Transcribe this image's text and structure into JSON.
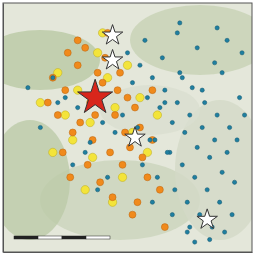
{
  "chart_data": {
    "type": "scatter",
    "xlim": [
      0,
      100
    ],
    "ylim": [
      0,
      100
    ],
    "xticks": [],
    "yticks": [],
    "tick_labels": false,
    "grid": false,
    "series": [
      {
        "color": "#f3e43a",
        "marker": "circle",
        "x": [
          15,
          22,
          30,
          38,
          45,
          52,
          58,
          35,
          28,
          42,
          48,
          33,
          25,
          55,
          40,
          20,
          50,
          36,
          44,
          62
        ],
        "values": [
          60,
          72,
          65,
          80,
          58,
          48,
          40,
          52,
          45,
          70,
          30,
          25,
          55,
          62,
          88,
          40,
          75,
          38,
          20,
          55
        ]
      },
      {
        "color": "#f08a1c",
        "marker": "circle",
        "x": [
          20,
          25,
          30,
          35,
          40,
          45,
          50,
          55,
          60,
          22,
          28,
          33,
          38,
          43,
          48,
          53,
          58,
          63,
          18,
          24,
          31,
          36,
          41,
          46,
          51,
          56,
          27,
          34,
          39,
          44,
          49,
          54,
          30,
          42,
          47,
          52,
          37,
          26,
          60,
          65
        ],
        "values": [
          70,
          65,
          75,
          60,
          68,
          55,
          62,
          50,
          45,
          55,
          48,
          82,
          72,
          40,
          35,
          58,
          30,
          25,
          60,
          40,
          52,
          45,
          78,
          65,
          42,
          38,
          30,
          35,
          28,
          22,
          48,
          20,
          85,
          88,
          72,
          15,
          55,
          80,
          65,
          10
        ]
      },
      {
        "color": "#1f7fa0",
        "marker": "circle",
        "x": [
          50,
          55,
          60,
          65,
          70,
          75,
          80,
          85,
          90,
          52,
          58,
          63,
          68,
          73,
          78,
          83,
          88,
          93,
          48,
          54,
          61,
          67,
          72,
          77,
          82,
          87,
          92,
          56,
          62,
          69,
          74,
          79,
          84,
          89,
          57,
          64,
          71,
          76,
          81,
          86,
          91,
          59,
          66,
          70,
          78,
          85,
          60,
          68,
          75,
          83,
          65,
          72,
          80,
          88,
          95,
          45,
          40,
          35,
          30,
          25,
          20,
          15,
          10,
          42,
          38,
          33,
          28,
          22,
          96,
          97,
          94,
          90,
          86,
          71,
          74,
          77
        ],
        "values": [
          80,
          75,
          70,
          65,
          60,
          55,
          50,
          45,
          40,
          68,
          62,
          58,
          52,
          48,
          42,
          38,
          32,
          28,
          55,
          50,
          45,
          40,
          35,
          30,
          25,
          20,
          15,
          35,
          30,
          25,
          20,
          15,
          10,
          8,
          85,
          78,
          72,
          66,
          60,
          55,
          50,
          45,
          40,
          88,
          82,
          76,
          20,
          15,
          10,
          5,
          60,
          70,
          65,
          72,
          62,
          48,
          52,
          44,
          58,
          62,
          70,
          50,
          66,
          30,
          25,
          40,
          35,
          60,
          80,
          55,
          45,
          85,
          90,
          92,
          8,
          4
        ]
      },
      {
        "color": "#ffffff",
        "marker": "star",
        "x": [
          44,
          44,
          53,
          82
        ],
        "values": [
          87,
          77,
          46,
          13
        ]
      },
      {
        "color": "#d8261b",
        "marker": "star",
        "x": [
          37
        ],
        "values": [
          62
        ]
      }
    ]
  }
}
